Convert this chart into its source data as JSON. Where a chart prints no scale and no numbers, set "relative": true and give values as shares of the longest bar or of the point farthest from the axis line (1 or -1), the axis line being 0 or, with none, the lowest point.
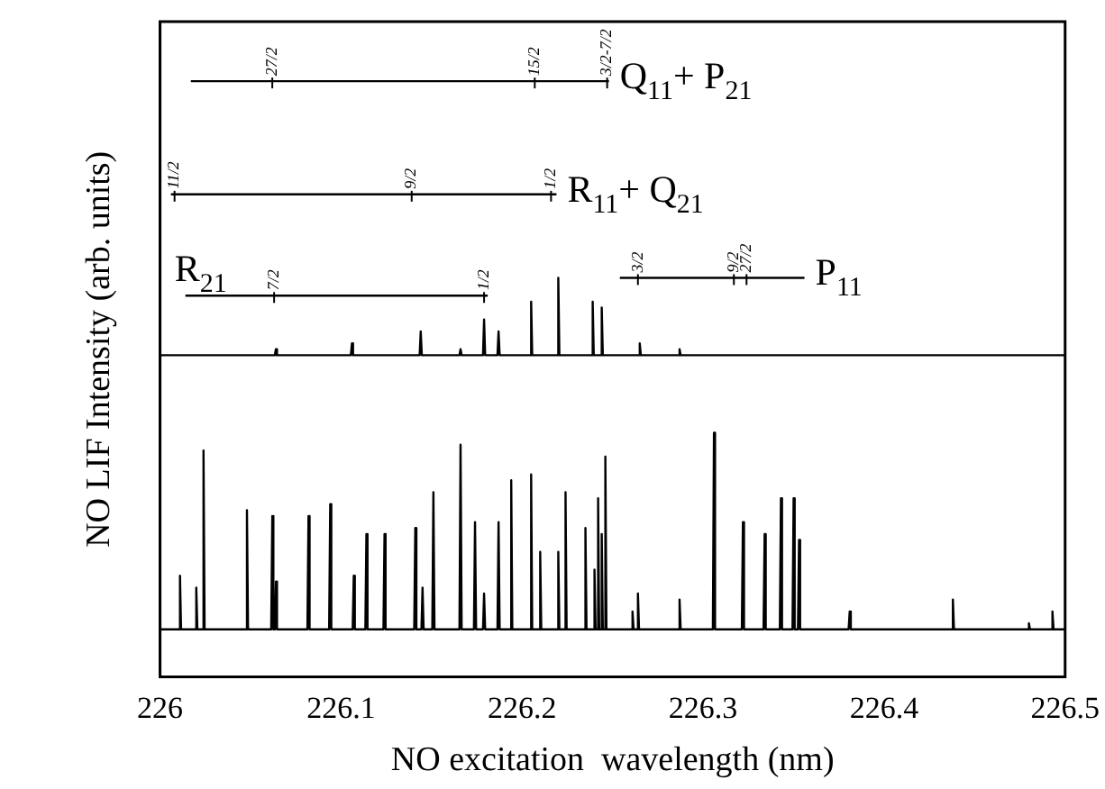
{
  "chart_data": {
    "type": "line",
    "relative": true,
    "xlabel": "NO excitation  wavelength (nm)",
    "ylabel": "NO LIF Intensity (arb. units)",
    "xlim": [
      226,
      226.5
    ],
    "xticks": [
      226,
      226.1,
      226.2,
      226.3,
      226.4,
      226.5
    ],
    "grid": false,
    "legend": "top",
    "marker": "none",
    "line_style": "solid",
    "series": [
      {
        "color": "#000000",
        "x": [
          226.0,
          226.0104,
          226.011,
          226.0116,
          226.0194,
          226.02,
          226.0206,
          226.0234,
          226.024,
          226.0246,
          226.0474,
          226.048,
          226.0486,
          226.0614,
          226.062,
          226.0626,
          226.0634,
          226.064,
          226.0646,
          226.0814,
          226.082,
          226.0826,
          226.0934,
          226.094,
          226.0946,
          226.1064,
          226.107,
          226.1076,
          226.1134,
          226.114,
          226.1146,
          226.1234,
          226.124,
          226.1246,
          226.1404,
          226.141,
          226.1416,
          226.1444,
          226.145,
          226.1456,
          226.1504,
          226.151,
          226.1516,
          226.1654,
          226.166,
          226.1666,
          226.1734,
          226.174,
          226.1746,
          226.1784,
          226.179,
          226.1796,
          226.1864,
          226.187,
          226.1876,
          226.1934,
          226.194,
          226.1946,
          226.2044,
          226.205,
          226.2056,
          226.2094,
          226.21,
          226.2106,
          226.2194,
          226.22,
          226.2206,
          226.2234,
          226.224,
          226.2246,
          226.2344,
          226.235,
          226.2356,
          226.2394,
          226.24,
          226.2406,
          226.2414,
          226.242,
          226.2426,
          226.2434,
          226.244,
          226.2446,
          226.2454,
          226.246,
          226.2466,
          226.2604,
          226.261,
          226.2616,
          226.2634,
          226.264,
          226.2646,
          226.2864,
          226.287,
          226.2876,
          226.3054,
          226.306,
          226.3066,
          226.3214,
          226.322,
          226.3226,
          226.3334,
          226.334,
          226.3346,
          226.3424,
          226.343,
          226.3436,
          226.3494,
          226.35,
          226.3506,
          226.3524,
          226.353,
          226.3536,
          226.3804,
          226.381,
          226.3816,
          226.4374,
          226.438,
          226.4386,
          226.4794,
          226.48,
          226.4806,
          226.4924,
          226.493,
          226.4936,
          226.5
        ],
        "values": [
          0.08,
          0.08,
          0.17,
          0.08,
          0.08,
          0.15,
          0.08,
          0.08,
          0.38,
          0.08,
          0.08,
          0.28,
          0.08,
          0.08,
          0.27,
          0.08,
          0.08,
          0.16,
          0.08,
          0.08,
          0.27,
          0.08,
          0.08,
          0.29,
          0.08,
          0.08,
          0.17,
          0.08,
          0.08,
          0.24,
          0.08,
          0.08,
          0.24,
          0.08,
          0.08,
          0.25,
          0.08,
          0.08,
          0.15,
          0.08,
          0.08,
          0.31,
          0.08,
          0.08,
          0.39,
          0.08,
          0.08,
          0.26,
          0.08,
          0.08,
          0.14,
          0.08,
          0.08,
          0.26,
          0.08,
          0.08,
          0.33,
          0.08,
          0.08,
          0.34,
          0.08,
          0.08,
          0.21,
          0.08,
          0.08,
          0.21,
          0.08,
          0.08,
          0.31,
          0.08,
          0.08,
          0.25,
          0.08,
          0.08,
          0.18,
          0.08,
          0.08,
          0.3,
          0.08,
          0.08,
          0.24,
          0.08,
          0.08,
          0.37,
          0.08,
          0.08,
          0.11,
          0.08,
          0.08,
          0.14,
          0.08,
          0.08,
          0.13,
          0.08,
          0.08,
          0.41,
          0.08,
          0.08,
          0.26,
          0.08,
          0.08,
          0.24,
          0.08,
          0.08,
          0.3,
          0.08,
          0.08,
          0.3,
          0.08,
          0.08,
          0.23,
          0.08,
          0.08,
          0.11,
          0.08,
          0.08,
          0.13,
          0.08,
          0.08,
          0.09,
          0.08,
          0.08,
          0.11,
          0.08,
          0.08
        ]
      },
      {
        "color": "#000000",
        "x": [
          226.0,
          226.0634,
          226.064,
          226.0646,
          226.1054,
          226.106,
          226.1066,
          226.1434,
          226.144,
          226.1446,
          226.1654,
          226.166,
          226.1666,
          226.1784,
          226.179,
          226.1796,
          226.1864,
          226.187,
          226.1876,
          226.2044,
          226.205,
          226.2056,
          226.2194,
          226.22,
          226.2206,
          226.2384,
          226.239,
          226.2396,
          226.2434,
          226.244,
          226.2446,
          226.2644,
          226.265,
          226.2656,
          226.2864,
          226.287,
          226.2876,
          226.5
        ],
        "values": [
          0.54,
          0.54,
          0.55,
          0.54,
          0.54,
          0.56,
          0.54,
          0.54,
          0.58,
          0.54,
          0.54,
          0.55,
          0.54,
          0.54,
          0.6,
          0.54,
          0.54,
          0.58,
          0.54,
          0.54,
          0.63,
          0.54,
          0.54,
          0.67,
          0.54,
          0.54,
          0.63,
          0.54,
          0.54,
          0.62,
          0.54,
          0.54,
          0.56,
          0.54,
          0.54,
          0.55,
          0.54,
          0.54
        ]
      },
      {
        "name": "Q$_{11}$+ P$_{21}$",
        "color": "#000000",
        "x": [
          226.017,
          226.062,
          226.207,
          226.247,
          226.248
        ],
        "values": [
          1,
          1,
          1,
          1,
          1
        ]
      },
      {
        "name": "R$_{11}$+ Q$_{21}$",
        "color": "#000000",
        "x": [
          226.006,
          226.008,
          226.139,
          226.216,
          226.219
        ],
        "values": [
          0.81,
          0.81,
          0.81,
          0.81,
          0.81
        ]
      },
      {
        "name": "R$_{21}$",
        "color": "#000000",
        "x": [
          226.181,
          226.179,
          226.063,
          226.014
        ],
        "values": [
          0.64,
          0.64,
          0.64,
          0.64
        ]
      },
      {
        "name": "P$_{11}$",
        "color": "#000000",
        "x": [
          226.254,
          226.264,
          226.317,
          226.324,
          226.356
        ],
        "values": [
          0.67,
          0.67,
          0.67,
          0.67,
          0.67
        ]
      }
    ],
    "annotations": [
      {
        "text": "27/2",
        "x": 226.062,
        "y": 1
      },
      {
        "text": "15/2",
        "x": 226.207,
        "y": 1
      },
      {
        "text": "3/2-7/2",
        "x": 226.247,
        "y": 1
      },
      {
        "text": "11/2",
        "x": 226.008,
        "y": 0.81
      },
      {
        "text": "9/2",
        "x": 226.139,
        "y": 0.81
      },
      {
        "text": "1/2",
        "x": 226.216,
        "y": 0.81
      },
      {
        "text": "7/2",
        "x": 226.063,
        "y": 0.64
      },
      {
        "text": "1/2",
        "x": 226.179,
        "y": 0.64
      },
      {
        "text": "3/2",
        "x": 226.264,
        "y": 0.67
      },
      {
        "text": "9/2",
        "x": 226.317,
        "y": 0.67
      },
      {
        "text": "27/2",
        "x": 226.324,
        "y": 0.67
      }
    ]
  }
}
